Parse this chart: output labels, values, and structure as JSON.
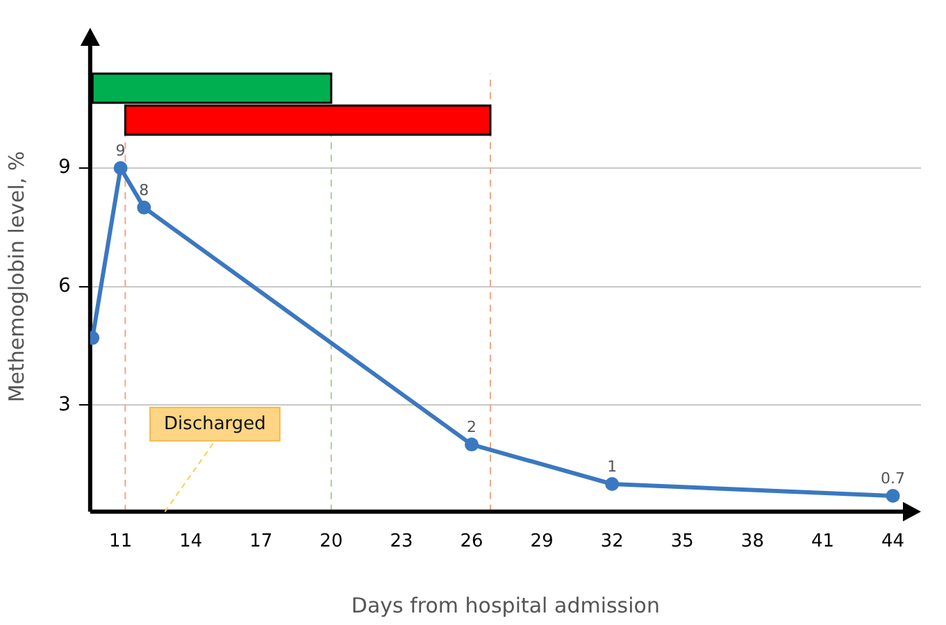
{
  "chart_data": {
    "type": "line",
    "xlabel": "Days from hospital admission",
    "ylabel": "Methemoglobin level, %",
    "x": [
      9.8,
      11,
      12,
      26,
      32,
      44
    ],
    "series": [
      {
        "color": "#3a78c0",
        "values": [
          4.7,
          9,
          8,
          2,
          1,
          0.7
        ],
        "value_labels": [
          null,
          "9",
          "8",
          "2",
          "1",
          "0.7"
        ]
      }
    ],
    "xlim": [
      9.7,
      45.2
    ],
    "xticks": [
      11,
      14,
      17,
      20,
      23,
      26,
      29,
      32,
      35,
      38,
      41,
      44
    ],
    "ylim": [
      0.3,
      12.2
    ],
    "yticks": [
      3,
      6,
      9
    ],
    "grid": "y",
    "marker": "circle",
    "line_style": "solid",
    "bands": [
      {
        "axis": "x",
        "from": 9.8,
        "to": 20,
        "color": "#00b050"
      },
      {
        "axis": "x",
        "from": 11.2,
        "to": 26.8,
        "color": "#ff0000"
      }
    ],
    "ref_lines": [
      {
        "axis": "x",
        "value": 11.2,
        "color": "#f4a582",
        "line_style": "dashed"
      },
      {
        "axis": "x",
        "value": 20,
        "color": "#a9d18e",
        "line_style": "dashed"
      },
      {
        "axis": "x",
        "value": 26.8,
        "color": "#f4a582",
        "line_style": "dashed"
      }
    ],
    "annotations": [
      "Discharged"
    ]
  }
}
